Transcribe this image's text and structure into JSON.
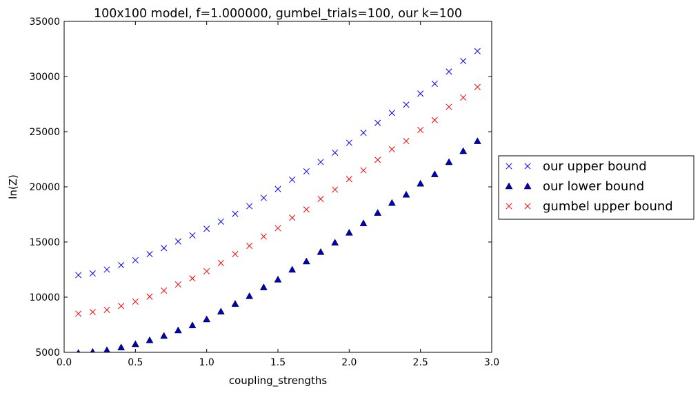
{
  "chart_data": {
    "type": "scatter",
    "title": "100x100 model, f=1.000000, gumbel_trials=100, our k=100",
    "xlabel": "coupling_strengths",
    "ylabel": "ln(Z)",
    "xlim": [
      0.0,
      3.0
    ],
    "ylim": [
      5000,
      35000
    ],
    "xticks": [
      0.0,
      0.5,
      1.0,
      1.5,
      2.0,
      2.5,
      3.0
    ],
    "xtick_labels": [
      "0.0",
      "0.5",
      "1.0",
      "1.5",
      "2.0",
      "2.5",
      "3.0"
    ],
    "yticks": [
      5000,
      10000,
      15000,
      20000,
      25000,
      30000,
      35000
    ],
    "ytick_labels": [
      "5000",
      "10000",
      "15000",
      "20000",
      "25000",
      "30000",
      "35000"
    ],
    "grid": false,
    "legend_position": "outside right",
    "x": [
      0.1,
      0.2,
      0.3,
      0.4,
      0.5,
      0.6,
      0.7,
      0.8,
      0.9,
      1.0,
      1.1,
      1.2,
      1.3,
      1.4,
      1.5,
      1.6,
      1.7,
      1.8,
      1.9,
      2.0,
      2.1,
      2.2,
      2.3,
      2.4,
      2.5,
      2.6,
      2.7,
      2.8,
      2.9
    ],
    "series": [
      {
        "name": "our upper bound",
        "marker": "x",
        "color": "#0000ff",
        "values": [
          12000,
          12150,
          12500,
          12900,
          13350,
          13900,
          14450,
          15050,
          15600,
          16200,
          16850,
          17550,
          18250,
          19000,
          19800,
          20650,
          21400,
          22250,
          23100,
          24000,
          24900,
          25800,
          26700,
          27450,
          28450,
          29350,
          30450,
          31400,
          32300
        ]
      },
      {
        "name": "our lower bound",
        "marker": "triangle",
        "color": "#0000bf",
        "values": [
          4950,
          5050,
          5200,
          5450,
          5750,
          6100,
          6500,
          7000,
          7450,
          8000,
          8700,
          9400,
          10100,
          10900,
          11600,
          12500,
          13250,
          14100,
          14950,
          15850,
          16700,
          17650,
          18550,
          19300,
          20300,
          21150,
          22250,
          23250,
          24150
        ]
      },
      {
        "name": "gumbel upper bound",
        "marker": "x",
        "color": "#ff0000",
        "values": [
          8500,
          8650,
          8850,
          9200,
          9600,
          10050,
          10600,
          11150,
          11700,
          12350,
          13100,
          13900,
          14650,
          15500,
          16250,
          17200,
          17950,
          18900,
          19750,
          20700,
          21500,
          22450,
          23400,
          24150,
          25150,
          26050,
          27250,
          28100,
          29050
        ]
      }
    ]
  }
}
